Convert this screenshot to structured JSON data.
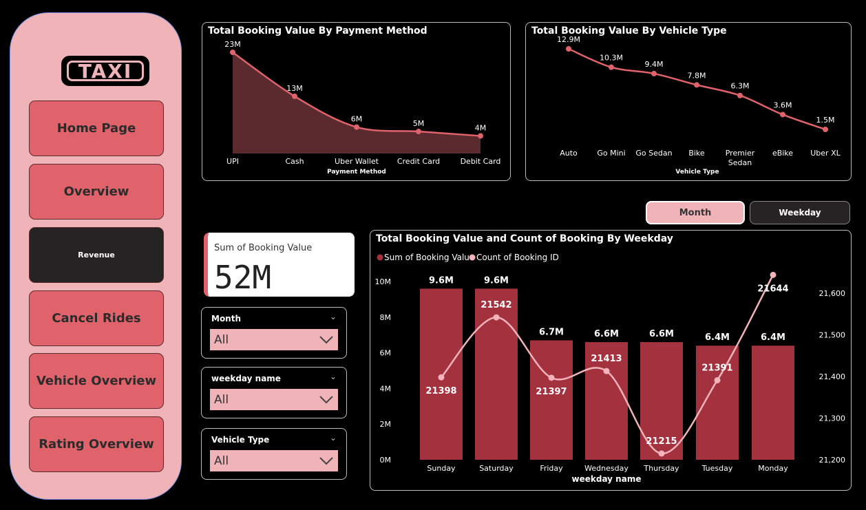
{
  "sidebar": {
    "logo_text": "TAXI",
    "items": [
      {
        "label": "Home Page"
      },
      {
        "label": "Overview"
      },
      {
        "label": "Revenue"
      },
      {
        "label": "Cancel Rides"
      },
      {
        "label": "Vehicle Overview"
      },
      {
        "label": "Rating Overview"
      }
    ],
    "active_index": 2
  },
  "toggles": {
    "month_label": "Month",
    "weekday_label": "Weekday",
    "selected": "Month"
  },
  "kpi": {
    "label": "Sum of Booking Value",
    "value": "52M"
  },
  "slicers": [
    {
      "title": "Month",
      "value": "All"
    },
    {
      "title": "weekday name",
      "value": "All"
    },
    {
      "title": "Vehicle Type",
      "value": "All"
    }
  ],
  "colors": {
    "sidebar_bg": "#efb3b8",
    "nav_button": "#e0636b",
    "nav_active": "#252323",
    "line_red": "#e0636b",
    "bar": "#a3323e",
    "area": "#5a2a2e",
    "count_line": "#f2b4ba"
  },
  "chart_data": [
    {
      "type": "area",
      "title": "Total Booking Value By Payment Method",
      "xlabel": "Payment Method",
      "categories": [
        "UPI",
        "Cash",
        "Uber Wallet",
        "Credit Card",
        "Debit Card"
      ],
      "values": [
        23,
        13,
        6,
        5,
        4
      ],
      "data_labels": [
        "23M",
        "13M",
        "6M",
        "5M",
        "4M"
      ],
      "unit": "M"
    },
    {
      "type": "line",
      "title": "Total Booking Value By Vehicle Type",
      "xlabel": "Vehicle Type",
      "categories": [
        "Auto",
        "Go Mini",
        "Go Sedan",
        "Bike",
        "Premier Sedan",
        "eBike",
        "Uber XL"
      ],
      "values": [
        12.9,
        10.3,
        9.4,
        7.8,
        6.3,
        3.6,
        1.5
      ],
      "data_labels": [
        "12.9M",
        "10.3M",
        "9.4M",
        "7.8M",
        "6.3M",
        "3.6M",
        "1.5M"
      ],
      "unit": "M"
    },
    {
      "type": "bar",
      "title": "Total Booking Value and Count of Booking By Weekday",
      "xlabel": "weekday name",
      "categories": [
        "Sunday",
        "Saturday",
        "Friday",
        "Wednesday",
        "Thursday",
        "Tuesday",
        "Monday"
      ],
      "series": [
        {
          "name": "Sum of Booking Value",
          "type": "bar",
          "values": [
            9.6,
            9.6,
            6.7,
            6.6,
            6.6,
            6.4,
            6.4
          ],
          "data_labels": [
            "9.6M",
            "9.6M",
            "6.7M",
            "6.6M",
            "6.6M",
            "6.4M",
            "6.4M"
          ]
        },
        {
          "name": "Count of Booking ID",
          "type": "line",
          "values": [
            21398,
            21542,
            21397,
            21413,
            21215,
            21391,
            21644
          ],
          "data_labels": [
            "21398",
            "21542",
            "21397",
            "21413",
            "21215",
            "21391",
            "21644"
          ]
        }
      ],
      "y_left": {
        "ticks": [
          "0M",
          "2M",
          "4M",
          "6M",
          "8M",
          "10M"
        ],
        "ylim": [
          0,
          10
        ]
      },
      "y_right": {
        "ticks": [
          "21,200",
          "21,300",
          "21,400",
          "21,500",
          "21,600"
        ],
        "ylim": [
          21200,
          21600
        ]
      },
      "legend": "top-left"
    }
  ]
}
